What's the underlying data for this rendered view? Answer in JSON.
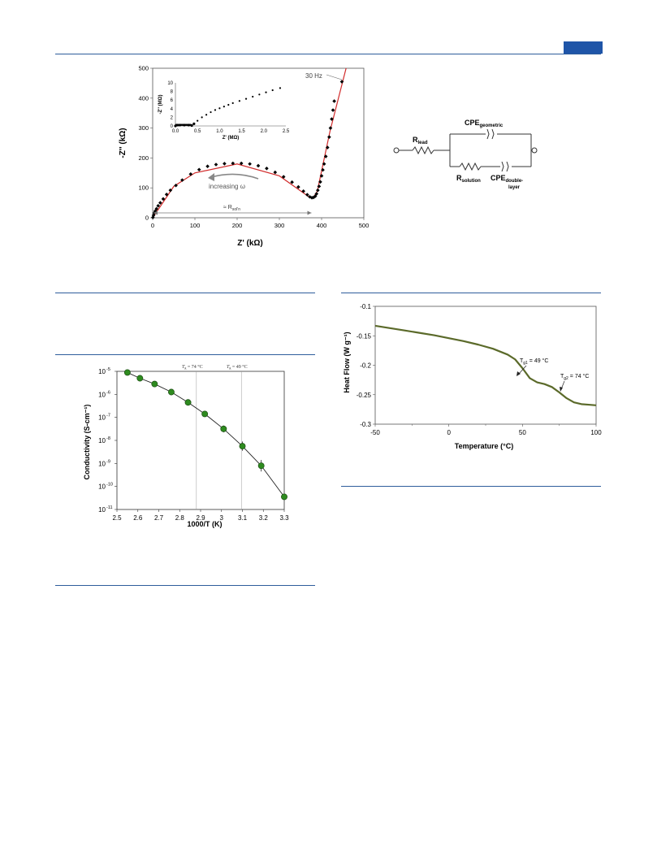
{
  "page": {
    "accent_color": "#1f55a8",
    "rule_color": "#2e5d9b"
  },
  "eis_plot": {
    "chart_data": {
      "type": "scatter",
      "title": "",
      "xlabel": "Z' (kΩ)",
      "ylabel": "-Z'' (kΩ)",
      "xlim": [
        0,
        500
      ],
      "ylim": [
        0,
        500
      ],
      "x_ticks": [
        "0",
        "100",
        "200",
        "300",
        "400",
        "500"
      ],
      "y_ticks": [
        "0",
        "100",
        "200",
        "300",
        "400",
        "500"
      ],
      "series": [
        {
          "values": [
            [
              0.5,
              1
            ],
            [
              2,
              8
            ],
            [
              4,
              16
            ],
            [
              6,
              22
            ],
            [
              9,
              30
            ],
            [
              13,
              40
            ],
            [
              18,
              50
            ],
            [
              25,
              63
            ],
            [
              33,
              78
            ],
            [
              42,
              92
            ],
            [
              55,
              108
            ],
            [
              70,
              126
            ],
            [
              90,
              146
            ],
            [
              110,
              161
            ],
            [
              130,
              172
            ],
            [
              150,
              178
            ],
            [
              170,
              181
            ],
            [
              190,
              182
            ],
            [
              210,
              182
            ],
            [
              230,
              180
            ],
            [
              250,
              174
            ],
            [
              270,
              165
            ],
            [
              290,
              152
            ],
            [
              310,
              137
            ],
            [
              330,
              119
            ],
            [
              345,
              103
            ],
            [
              357,
              89
            ],
            [
              366,
              77
            ],
            [
              372,
              70
            ],
            [
              377,
              67
            ],
            [
              381,
              68
            ],
            [
              385,
              72
            ],
            [
              388,
              80
            ],
            [
              391,
              92
            ],
            [
              394,
              105
            ],
            [
              397,
              120
            ],
            [
              400,
              140
            ],
            [
              403,
              160
            ],
            [
              406,
              180
            ],
            [
              410,
              205
            ],
            [
              414,
              235
            ],
            [
              418,
              270
            ],
            [
              421,
              300
            ],
            [
              424,
              330
            ],
            [
              427,
              360
            ],
            [
              430,
              390
            ],
            [
              448,
              455
            ]
          ]
        },
        {
          "name": "fit",
          "values": [
            [
              0,
              0
            ],
            [
              50,
              105
            ],
            [
              100,
              150
            ],
            [
              200,
              180
            ],
            [
              300,
              140
            ],
            [
              370,
              70
            ],
            [
              380,
              66
            ],
            [
              390,
              90
            ],
            [
              420,
              290
            ],
            [
              458,
              500
            ]
          ]
        }
      ],
      "annotations": [
        "30 Hz",
        "increasing ω",
        "≈ R",
        "sol'n"
      ]
    },
    "inset": {
      "xlabel": "Z' (MΩ)",
      "ylabel": "-Z'' (MΩ)",
      "xlim": [
        0,
        2.5
      ],
      "ylim": [
        0,
        10
      ],
      "x_ticks": [
        "0.0",
        "0.5",
        "1.0",
        "1.5",
        "2.0",
        "2.5"
      ],
      "y_ticks": [
        "0",
        "2",
        "4",
        "6",
        "8",
        "10"
      ],
      "values": [
        [
          0,
          0
        ],
        [
          0.05,
          0.2
        ],
        [
          0.1,
          0.2
        ],
        [
          0.2,
          0.2
        ],
        [
          0.3,
          0.2
        ],
        [
          0.37,
          0.1
        ],
        [
          0.42,
          0.5
        ],
        [
          0.5,
          1.2
        ],
        [
          0.6,
          2.0
        ],
        [
          0.7,
          2.6
        ],
        [
          0.8,
          3.2
        ],
        [
          0.9,
          3.7
        ],
        [
          1.0,
          4.1
        ],
        [
          1.1,
          4.5
        ],
        [
          1.2,
          4.9
        ],
        [
          1.3,
          5.3
        ],
        [
          1.45,
          5.8
        ],
        [
          1.6,
          6.3
        ],
        [
          1.75,
          6.8
        ],
        [
          1.9,
          7.3
        ],
        [
          2.05,
          7.8
        ],
        [
          2.2,
          8.3
        ],
        [
          2.37,
          8.8
        ]
      ]
    }
  },
  "circuit": {
    "r_lead": "R",
    "r_lead_sub": "lead",
    "cpe_geo": "CPE",
    "cpe_geo_sub": "geometric",
    "r_solution": "R",
    "r_solution_sub": "solution",
    "cpe_dl": "CPE",
    "cpe_dl_sub1": "double-",
    "cpe_dl_sub2": "layer"
  },
  "conductivity_plot": {
    "chart_data": {
      "type": "scatter",
      "title": "",
      "xlabel": "1000/T (K)",
      "ylabel": "Conductivity (S-cm⁻¹)",
      "xlim": [
        2.5,
        3.3
      ],
      "ylim_log10": [
        -11,
        -5
      ],
      "x_ticks": [
        "2.5",
        "2.6",
        "2.7",
        "2.8",
        "2.9",
        "3",
        "3.1",
        "3.2",
        "3.3"
      ],
      "y_ticks": [
        "10",
        "10",
        "10",
        "10",
        "10",
        "10",
        "10"
      ],
      "y_tick_exponents": [
        "-11",
        "-10",
        "-9",
        "-8",
        "-7",
        "-6",
        "-5"
      ],
      "x": [
        2.55,
        2.61,
        2.68,
        2.76,
        2.84,
        2.92,
        3.01,
        3.1,
        3.19,
        3.3
      ],
      "log10_values": [
        -5.05,
        -5.3,
        -5.55,
        -5.9,
        -6.35,
        -6.85,
        -7.5,
        -8.25,
        -9.1,
        -10.45
      ],
      "error_log10": [
        0,
        0,
        0,
        0,
        0,
        0,
        0.15,
        0.2,
        0.25,
        0
      ],
      "annotations": [
        "T",
        "g",
        " = 74 °C",
        "T",
        "g",
        " = 49 °C"
      ],
      "marker_color": "#2e8b1f",
      "vlines_x": [
        2.88,
        3.095
      ]
    }
  },
  "dsc_plot": {
    "chart_data": {
      "type": "line",
      "title": "",
      "xlabel": "Temperature (°C)",
      "ylabel": "Heat Flow (W g⁻¹)",
      "xlim": [
        -50,
        100
      ],
      "ylim": [
        -0.3,
        -0.1
      ],
      "x_ticks": [
        "-50",
        "0",
        "50",
        "100"
      ],
      "y_ticks": [
        "-0.1",
        "-0.15",
        "-0.2",
        "-0.25",
        "-0.3"
      ],
      "x": [
        -50,
        -40,
        -30,
        -20,
        -10,
        0,
        10,
        20,
        30,
        40,
        45,
        50,
        55,
        60,
        65,
        70,
        75,
        80,
        85,
        90,
        95,
        100
      ],
      "values": [
        -0.133,
        -0.137,
        -0.141,
        -0.145,
        -0.149,
        -0.154,
        -0.159,
        -0.165,
        -0.172,
        -0.182,
        -0.19,
        -0.205,
        -0.222,
        -0.229,
        -0.232,
        -0.237,
        -0.246,
        -0.256,
        -0.263,
        -0.266,
        -0.267,
        -0.268
      ],
      "line_color": "#5b6a2a",
      "annotations": [
        "T",
        "g1",
        " = 49 °C",
        "T",
        "g2",
        " = 74 °C"
      ]
    }
  }
}
